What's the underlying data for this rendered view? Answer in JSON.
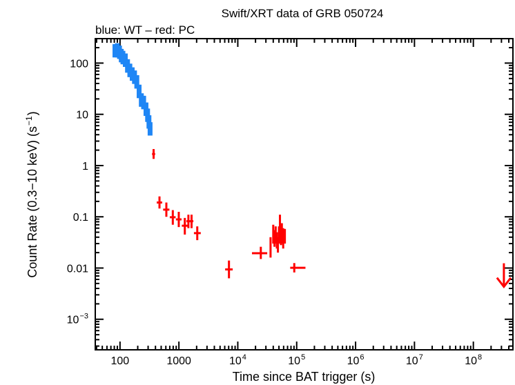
{
  "chart_data": {
    "type": "scatter",
    "title": "Swift/XRT data of GRB 050724",
    "subtitle": "blue: WT – red: PC",
    "xlabel": "Time since BAT trigger (s)",
    "ylabel": "Count Rate (0.3−10 keV) (s",
    "ylabel_sup": "−1",
    "ylabel_end": ")",
    "x_scale": "log",
    "y_scale": "log",
    "xlim": [
      38,
      470000000
    ],
    "ylim": [
      0.0001,
      300
    ],
    "grid": false,
    "x_ticks": [
      {
        "value": 100,
        "label": "100",
        "sup": ""
      },
      {
        "value": 1000,
        "label": "1000",
        "sup": ""
      },
      {
        "value": 10000,
        "label": "10",
        "sup": "4"
      },
      {
        "value": 100000,
        "label": "10",
        "sup": "5"
      },
      {
        "value": 1000000,
        "label": "10",
        "sup": "6"
      },
      {
        "value": 10000000,
        "label": "10",
        "sup": "7"
      },
      {
        "value": 100000000,
        "label": "10",
        "sup": "8"
      }
    ],
    "y_ticks": [
      {
        "value": 0.001,
        "label": "10",
        "sup": "−3"
      },
      {
        "value": 0.01,
        "label": "0.01",
        "sup": ""
      },
      {
        "value": 0.1,
        "label": "0.1",
        "sup": ""
      },
      {
        "value": 1,
        "label": "1",
        "sup": ""
      },
      {
        "value": 10,
        "label": "10",
        "sup": ""
      },
      {
        "value": 100,
        "label": "100",
        "sup": ""
      }
    ],
    "series": [
      {
        "mode": "WT",
        "color": "#1f86f5",
        "points": [
          {
            "x": 82,
            "y": 174
          },
          {
            "x": 90,
            "y": 180
          },
          {
            "x": 98,
            "y": 163
          },
          {
            "x": 105,
            "y": 140
          },
          {
            "x": 112,
            "y": 128
          },
          {
            "x": 123,
            "y": 114
          },
          {
            "x": 134,
            "y": 88
          },
          {
            "x": 147,
            "y": 72
          },
          {
            "x": 161,
            "y": 61
          },
          {
            "x": 176,
            "y": 53
          },
          {
            "x": 193,
            "y": 43
          },
          {
            "x": 211,
            "y": 28
          },
          {
            "x": 230,
            "y": 19
          },
          {
            "x": 252,
            "y": 17
          },
          {
            "x": 276,
            "y": 12.6
          },
          {
            "x": 294,
            "y": 9.6
          },
          {
            "x": 310,
            "y": 7.1
          },
          {
            "x": 324,
            "y": 5.2
          }
        ]
      },
      {
        "mode": "PC",
        "color": "#ff0000",
        "points": [
          {
            "x": 372,
            "y": 1.68,
            "xlo": 350,
            "xhi": 395,
            "ylo": 1.35,
            "yhi": 2.1
          },
          {
            "x": 468,
            "y": 0.19,
            "xlo": 420,
            "xhi": 520,
            "ylo": 0.145,
            "yhi": 0.25
          },
          {
            "x": 612,
            "y": 0.138,
            "xlo": 540,
            "xhi": 690,
            "ylo": 0.1,
            "yhi": 0.19
          },
          {
            "x": 788,
            "y": 0.098,
            "xlo": 700,
            "xhi": 880,
            "ylo": 0.07,
            "yhi": 0.135
          },
          {
            "x": 995,
            "y": 0.089,
            "xlo": 890,
            "xhi": 1110,
            "ylo": 0.063,
            "yhi": 0.125
          },
          {
            "x": 1260,
            "y": 0.067,
            "xlo": 1120,
            "xhi": 1400,
            "ylo": 0.045,
            "yhi": 0.095
          },
          {
            "x": 1450,
            "y": 0.082,
            "xlo": 1340,
            "xhi": 1560,
            "ylo": 0.06,
            "yhi": 0.11
          },
          {
            "x": 1640,
            "y": 0.082,
            "xlo": 1540,
            "xhi": 1760,
            "ylo": 0.06,
            "yhi": 0.11
          },
          {
            "x": 2050,
            "y": 0.048,
            "xlo": 1800,
            "xhi": 2350,
            "ylo": 0.035,
            "yhi": 0.065
          },
          {
            "x": 7080,
            "y": 0.0094,
            "xlo": 6100,
            "xhi": 8200,
            "ylo": 0.0063,
            "yhi": 0.014
          },
          {
            "x": 24600,
            "y": 0.0195,
            "xlo": 17400,
            "xhi": 31600,
            "ylo": 0.015,
            "yhi": 0.026
          },
          {
            "x": 36000,
            "y": 0.027,
            "xlo": 35000,
            "xhi": 37000,
            "ylo": 0.016,
            "yhi": 0.04
          },
          {
            "x": 40000,
            "y": 0.05,
            "xlo": 39000,
            "xhi": 41000,
            "ylo": 0.03,
            "yhi": 0.07
          },
          {
            "x": 42000,
            "y": 0.038,
            "xlo": 41000,
            "xhi": 43000,
            "ylo": 0.026,
            "yhi": 0.055
          },
          {
            "x": 44000,
            "y": 0.045,
            "xlo": 43000,
            "xhi": 45000,
            "ylo": 0.03,
            "yhi": 0.065
          },
          {
            "x": 46000,
            "y": 0.035,
            "xlo": 45000,
            "xhi": 47000,
            "ylo": 0.024,
            "yhi": 0.05
          },
          {
            "x": 48000,
            "y": 0.028,
            "xlo": 47000,
            "xhi": 49000,
            "ylo": 0.02,
            "yhi": 0.04
          },
          {
            "x": 50000,
            "y": 0.045,
            "xlo": 49000,
            "xhi": 51000,
            "ylo": 0.03,
            "yhi": 0.065
          },
          {
            "x": 52000,
            "y": 0.065,
            "xlo": 51000,
            "xhi": 53000,
            "ylo": 0.04,
            "yhi": 0.11
          },
          {
            "x": 54000,
            "y": 0.04,
            "xlo": 53000,
            "xhi": 55000,
            "ylo": 0.028,
            "yhi": 0.058
          },
          {
            "x": 56000,
            "y": 0.05,
            "xlo": 55000,
            "xhi": 57000,
            "ylo": 0.03,
            "yhi": 0.075
          },
          {
            "x": 59000,
            "y": 0.038,
            "xlo": 57500,
            "xhi": 61000,
            "ylo": 0.024,
            "yhi": 0.06
          },
          {
            "x": 63000,
            "y": 0.042,
            "xlo": 61500,
            "xhi": 65000,
            "ylo": 0.03,
            "yhi": 0.058
          },
          {
            "x": 91000,
            "y": 0.0101,
            "xlo": 77600,
            "xhi": 141000,
            "ylo": 0.0082,
            "yhi": 0.0125
          }
        ],
        "upper_limits": [
          {
            "x": 330000000,
            "y": 0.0052
          }
        ]
      }
    ]
  }
}
